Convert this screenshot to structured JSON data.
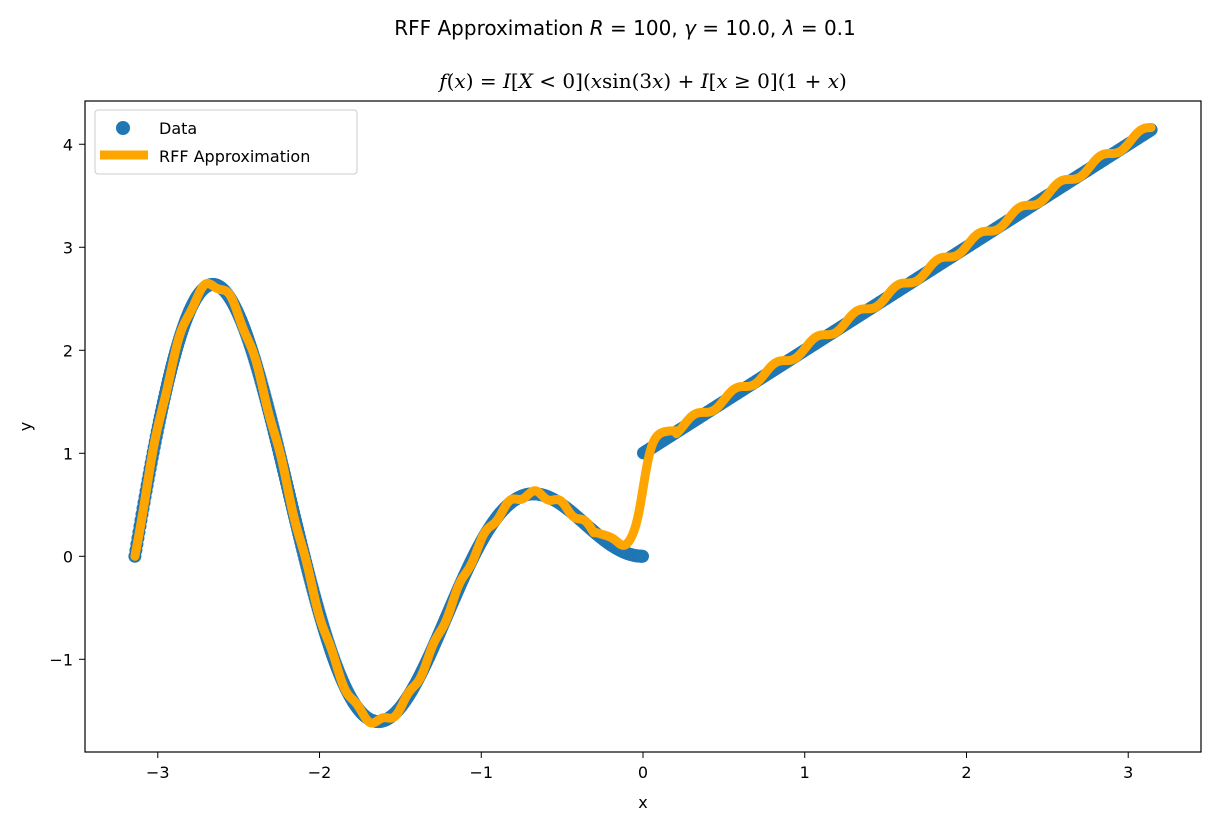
{
  "figure": {
    "suptitle": "RFF Approximation R = 100, γ = 10.0, λ = 0.1",
    "title": "f(x) = I[X < 0](x sin(3x) + I[x ≥ 0](1 + x)"
  },
  "chart_data": {
    "type": "scatter",
    "title": "f(x) = I[X < 0](x sin(3x) + I[x ≥ 0](1 + x)",
    "xlabel": "x",
    "ylabel": "y",
    "xlim": [
      -3.45,
      3.45
    ],
    "ylim": [
      -1.9,
      4.42
    ],
    "xticks": [
      -3,
      -2,
      -1,
      0,
      1,
      2,
      3
    ],
    "xtick_labels": [
      "−3",
      "−2",
      "−1",
      "0",
      "1",
      "2",
      "3"
    ],
    "yticks": [
      -1,
      0,
      1,
      2,
      3,
      4
    ],
    "ytick_labels": [
      "−1",
      "0",
      "1",
      "2",
      "3",
      "4"
    ],
    "grid": false,
    "legend_position": "upper-left",
    "series": [
      {
        "name": "Data",
        "kind": "scatter",
        "color": "#1f77b4",
        "x_range": [
          -3.14159,
          3.14159
        ],
        "formula": "x<0 ? x*sin(3x) : 1+x"
      },
      {
        "name": "RFF Approximation",
        "kind": "line",
        "color": "#ffa500",
        "x_range": [
          -3.14159,
          3.14159
        ],
        "formula": "smooth approximation of data"
      }
    ]
  }
}
